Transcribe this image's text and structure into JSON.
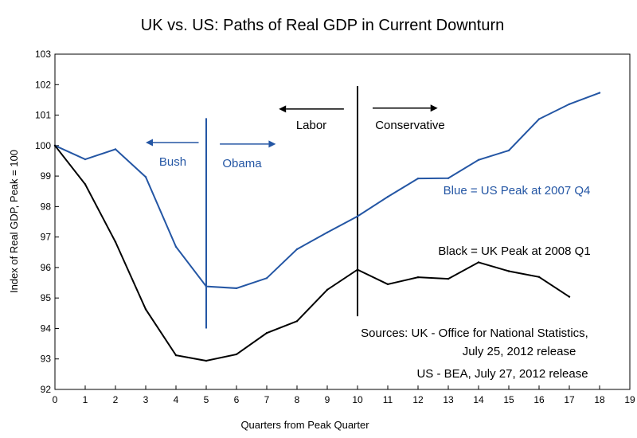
{
  "chart_data": {
    "type": "line",
    "title": "UK vs. US:  Paths of Real GDP in Current Downturn",
    "xlabel": "Quarters from Peak Quarter",
    "ylabel": "Index of Real GDP, Peak = 100",
    "xlim": [
      0,
      19
    ],
    "ylim": [
      92,
      103
    ],
    "xticks": [
      0,
      1,
      2,
      3,
      4,
      5,
      6,
      7,
      8,
      9,
      10,
      11,
      12,
      13,
      14,
      15,
      16,
      17,
      18,
      19
    ],
    "yticks": [
      92,
      93,
      94,
      95,
      96,
      97,
      98,
      99,
      100,
      101,
      102,
      103
    ],
    "series": [
      {
        "name": "US",
        "color": "#2456a4",
        "x": [
          0,
          1,
          2,
          3,
          4,
          5,
          6,
          7,
          8,
          9,
          10,
          11,
          12,
          13,
          14,
          15,
          16,
          17,
          18
        ],
        "values": [
          100.0,
          99.55,
          99.88,
          98.97,
          96.68,
          95.38,
          95.32,
          95.65,
          96.6,
          97.15,
          97.68,
          98.32,
          98.92,
          98.93,
          99.53,
          99.84,
          100.87,
          101.36,
          101.73
        ]
      },
      {
        "name": "UK",
        "color": "#000000",
        "x": [
          0,
          1,
          2,
          3,
          4,
          5,
          6,
          7,
          8,
          9,
          10,
          11,
          12,
          13,
          14,
          15,
          16,
          17
        ],
        "values": [
          100.0,
          98.73,
          96.84,
          94.63,
          93.12,
          92.94,
          93.15,
          93.85,
          94.24,
          95.27,
          95.93,
          95.45,
          95.68,
          95.63,
          96.17,
          95.88,
          95.69,
          95.04
        ]
      }
    ],
    "vertical_lines": [
      {
        "name": "us-admin-change-line",
        "x": 5,
        "y_from": 94.0,
        "y_to": 100.9,
        "color": "#2456a4"
      },
      {
        "name": "uk-govt-change-line",
        "x": 10,
        "y_from": 94.4,
        "y_to": 101.95,
        "color": "#000000"
      }
    ],
    "arrows": [
      {
        "name": "bush-arrow",
        "from_x": 4.75,
        "to_x": 3.0,
        "y": 100.1,
        "color": "#2456a4"
      },
      {
        "name": "obama-arrow",
        "from_x": 5.45,
        "to_x": 7.3,
        "y": 100.05,
        "color": "#2456a4"
      },
      {
        "name": "labor-arrow",
        "from_x": 9.55,
        "to_x": 7.4,
        "y": 101.2,
        "color": "#000000"
      },
      {
        "name": "conservative-arrow",
        "from_x": 10.5,
        "to_x": 12.65,
        "y": 101.23,
        "color": "#000000"
      }
    ],
    "annotations": {
      "bush": "Bush",
      "obama": "Obama",
      "labor": "Labor",
      "conservative": "Conservative",
      "us_legend": "Blue = US Peak at 2007 Q4",
      "uk_legend": "Black = UK Peak at 2008 Q1",
      "source_line1": "Sources:  UK - Office for National Statistics,",
      "source_line2": "July 25, 2012 release",
      "source_line3": "US - BEA, July 27, 2012 release"
    }
  }
}
